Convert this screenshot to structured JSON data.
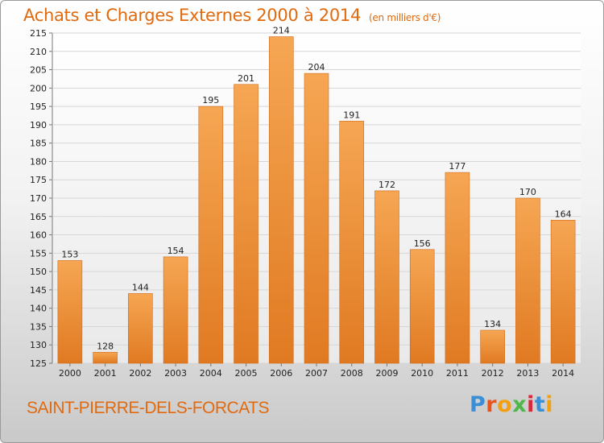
{
  "header": {
    "title": "Achats et Charges Externes 2000 à 2014",
    "subtitle": "(en milliers d'€)"
  },
  "footer": {
    "town": "SAINT-PIERRE-DELS-FORCATS",
    "logo": "Proxiti"
  },
  "colors": {
    "accent": "#e06a10",
    "bar_light": "#f6a653",
    "bar_dark": "#e07a22"
  },
  "chart_data": {
    "type": "bar",
    "title": "Achats et Charges Externes 2000 à 2014",
    "subtitle": "(en milliers d'€)",
    "categories": [
      "2000",
      "2001",
      "2002",
      "2003",
      "2004",
      "2005",
      "2006",
      "2007",
      "2008",
      "2009",
      "2010",
      "2011",
      "2012",
      "2013",
      "2014"
    ],
    "values": [
      153,
      128,
      144,
      154,
      195,
      201,
      214,
      204,
      191,
      172,
      156,
      177,
      134,
      170,
      164
    ],
    "ylim": [
      125,
      215
    ],
    "yticks": [
      125,
      130,
      135,
      140,
      145,
      150,
      155,
      160,
      165,
      170,
      175,
      180,
      185,
      190,
      195,
      200,
      205,
      210,
      215
    ],
    "grid": true,
    "legend": "none",
    "xlabel": "",
    "ylabel": ""
  }
}
